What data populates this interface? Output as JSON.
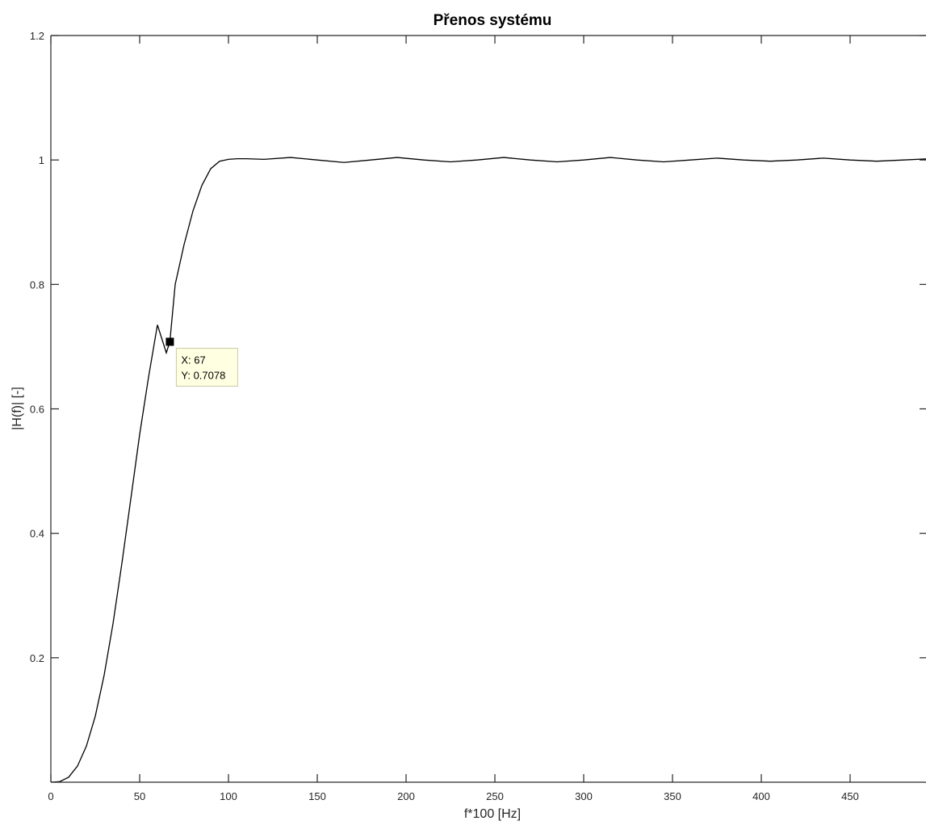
{
  "chart_data": {
    "type": "line",
    "title": "Přenos systému",
    "xlabel": "f*100 [Hz]",
    "ylabel": "|H(f)| [-]",
    "xlim": [
      0,
      495
    ],
    "ylim": [
      0,
      1.2
    ],
    "xticks": [
      0,
      50,
      100,
      150,
      200,
      250,
      300,
      350,
      400,
      450
    ],
    "yticks": [
      0.2,
      0.4,
      0.6,
      0.8,
      1,
      1.2
    ],
    "xtick_labels": [
      "0",
      "50",
      "100",
      "150",
      "200",
      "250",
      "300",
      "350",
      "400",
      "450"
    ],
    "ytick_labels": [
      "0.2",
      "0.4",
      "0.6",
      "0.8",
      "1",
      "1.2"
    ],
    "grid": false,
    "series": [
      {
        "color": "#000000",
        "x": [
          0,
          5,
          10,
          15,
          20,
          25,
          30,
          35,
          40,
          45,
          50,
          55,
          60,
          65,
          67,
          70,
          75,
          80,
          85,
          90,
          95,
          100,
          105,
          110,
          120,
          135,
          150,
          165,
          180,
          195,
          210,
          225,
          240,
          255,
          270,
          285,
          300,
          315,
          330,
          345,
          360,
          375,
          390,
          405,
          420,
          435,
          450,
          465,
          480,
          495
        ],
        "y": [
          0,
          0.001,
          0.008,
          0.026,
          0.058,
          0.106,
          0.172,
          0.255,
          0.352,
          0.455,
          0.559,
          0.651,
          0.735,
          0.69,
          0.7078,
          0.8,
          0.864,
          0.918,
          0.959,
          0.986,
          0.998,
          1.001,
          1.002,
          1.002,
          1.001,
          1.004,
          1.0,
          0.996,
          1.0,
          1.004,
          1.0,
          0.997,
          1.0,
          1.004,
          1.0,
          0.997,
          1.0,
          1.004,
          1.0,
          0.997,
          1.0,
          1.003,
          1.0,
          0.998,
          1.0,
          1.003,
          1.0,
          0.998,
          1.0,
          1.002
        ]
      }
    ],
    "annotations": [
      {
        "x": 67,
        "y": 0.7078,
        "label_x": "X: 67",
        "label_y": "Y: 0.7078"
      }
    ]
  }
}
